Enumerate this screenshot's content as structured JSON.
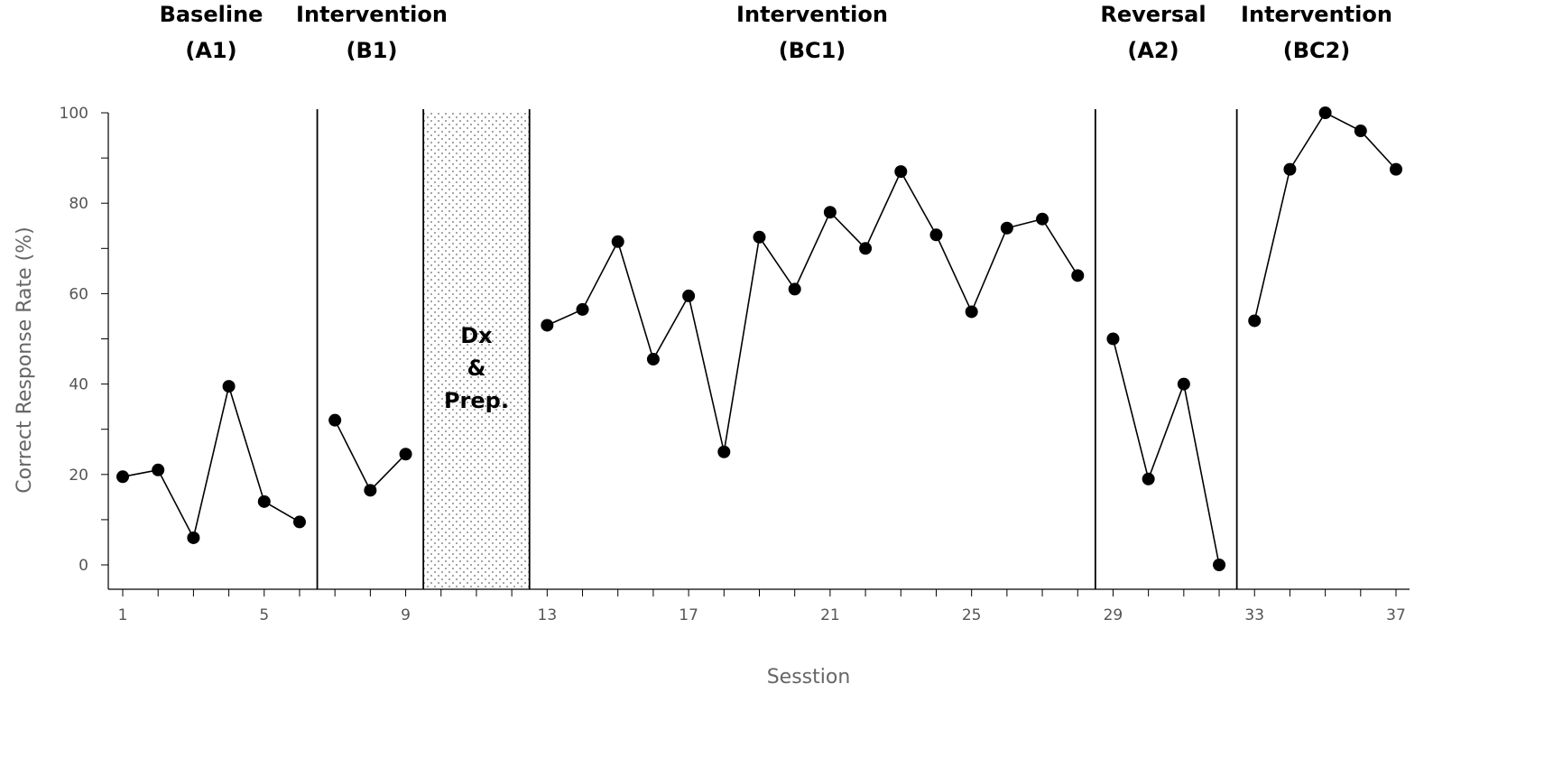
{
  "chart_data": {
    "type": "line",
    "xlabel": "Sesstion",
    "ylabel": "Correct Response Rate (%)",
    "ylim": [
      0,
      100
    ],
    "xlim": [
      0.5,
      37.5
    ],
    "y_ticks": [
      0,
      20,
      40,
      60,
      80,
      100
    ],
    "x_tick_labels": [
      1,
      5,
      9,
      13,
      17,
      21,
      25,
      29,
      33,
      37
    ],
    "phases": [
      {
        "id": "A1",
        "label_line1": "Baseline",
        "label_line2": "(A1)",
        "sessions": [
          1,
          2,
          3,
          4,
          5,
          6
        ],
        "values": [
          19.5,
          21,
          6,
          39.5,
          14,
          9.5
        ]
      },
      {
        "id": "B1",
        "label_line1": "Intervention",
        "label_line2": "(B1)",
        "sessions": [
          7,
          8,
          9
        ],
        "values": [
          32,
          16.5,
          24.5
        ]
      },
      {
        "id": "BC1",
        "label_line1": "Intervention",
        "label_line2": "(BC1)",
        "sessions": [
          13,
          14,
          15,
          16,
          17,
          18,
          19,
          20,
          21,
          22,
          23,
          24,
          25,
          26,
          27,
          28
        ],
        "values": [
          53,
          56.5,
          71.5,
          45.5,
          59.5,
          25,
          72.5,
          61,
          78,
          70,
          87,
          73,
          56,
          74.5,
          76.5,
          64
        ]
      },
      {
        "id": "A2",
        "label_line1": "Reversal",
        "label_line2": "(A2)",
        "sessions": [
          29,
          30,
          31,
          32
        ],
        "values": [
          50,
          19,
          40,
          0
        ]
      },
      {
        "id": "BC2",
        "label_line1": "Intervention",
        "label_line2": "(BC2)",
        "sessions": [
          33,
          34,
          35,
          36,
          37
        ],
        "values": [
          54,
          87.5,
          100,
          96,
          87.5
        ]
      }
    ],
    "phase_change_lines_at": [
      6.5,
      9.5,
      12.5,
      28.5,
      32.5
    ],
    "gap": {
      "from": 9.5,
      "to": 12.5,
      "lines": [
        "Dx",
        "&",
        "Prep."
      ]
    }
  }
}
